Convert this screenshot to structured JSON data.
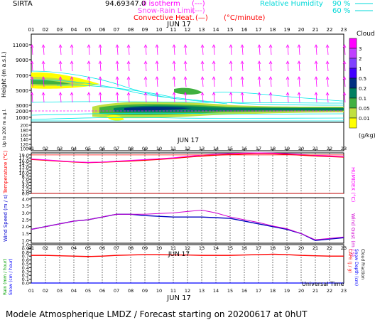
{
  "chart_data": [
    {
      "type": "heatmap",
      "panel": "clouds",
      "x_hours": [
        "01",
        "02",
        "03",
        "04",
        "05",
        "06",
        "07",
        "08",
        "09",
        "10",
        "11",
        "12",
        "13",
        "14",
        "15",
        "16",
        "17",
        "18",
        "19",
        "20",
        "21",
        "22",
        "23"
      ],
      "date_label": "JUN 17",
      "ylabel": "Height (m a.s.l.)",
      "ylabel_sub": "Up to 200 m a.g.l.",
      "y_ticks_upper": [
        "11000",
        "9000",
        "7000",
        "5000",
        "3000",
        "2000",
        "1000"
      ],
      "y_ticks_lower": [
        "200",
        "180",
        "160",
        "140",
        "120",
        "100"
      ],
      "legend": {
        "title": "Clouds",
        "unit": "(g/kg)",
        "levels": [
          "3",
          "2",
          "1",
          "0.5",
          "0.2",
          "0.1",
          "0.05",
          "0.01"
        ],
        "colors": [
          "#ff00ff",
          "#c040ff",
          "#8040ff",
          "#4000ff",
          "#003080",
          "#008060",
          "#40b040",
          "#c0e040",
          "#ffff00"
        ]
      }
    },
    {
      "type": "line",
      "panel": "temperature",
      "ylabel": "Temperature (°C)",
      "ylabel_right": "HUMIDEX (°C)",
      "y_ticks": [
        "19.0",
        "17.5",
        "16.0",
        "14.5",
        "13.0",
        "11.5",
        "10.0",
        "8.5",
        "7.0",
        "5.5",
        "4.0",
        "2.5",
        "1.0",
        "0.0"
      ],
      "ylim": [
        0,
        20
      ],
      "x": [
        1,
        2,
        3,
        4,
        5,
        6,
        7,
        8,
        9,
        10,
        11,
        12,
        13,
        14,
        15,
        16,
        17,
        18,
        19,
        20,
        21,
        22,
        23
      ],
      "series": [
        {
          "values": [
            16.8,
            16.4,
            15.9,
            15.5,
            15.2,
            15.4,
            15.7,
            16.0,
            16.4,
            16.8,
            17.3,
            17.9,
            18.4,
            18.9,
            19.2,
            19.5,
            19.7,
            19.6,
            19.3,
            18.9,
            18.5,
            18.2,
            17.9
          ]
        },
        {
          "values": [
            17.0,
            16.6,
            16.1,
            15.6,
            15.3,
            15.5,
            15.9,
            16.3,
            16.7,
            17.1,
            17.6,
            18.3,
            18.9,
            19.4,
            19.7,
            19.9,
            20.0,
            19.9,
            19.6,
            19.2,
            18.8,
            18.5,
            18.2
          ]
        }
      ]
    },
    {
      "type": "line",
      "panel": "wind",
      "ylabel": "Wind Speed (m / s)",
      "ylabel_right": "Wind Gust (m / s)",
      "y_ticks": [
        "4.0",
        "3.5",
        "3.0",
        "2.5",
        "2.0",
        "1.5",
        "1.0"
      ],
      "ylim": [
        0.8,
        4.1
      ],
      "x": [
        1,
        2,
        3,
        4,
        5,
        6,
        7,
        8,
        9,
        10,
        11,
        12,
        13,
        14,
        15,
        16,
        17,
        18,
        19,
        20,
        21,
        22,
        23
      ],
      "series": [
        {
          "name": "Wind Speed",
          "values": [
            1.8,
            2.0,
            2.2,
            2.4,
            2.5,
            2.7,
            2.9,
            2.9,
            2.8,
            2.75,
            2.7,
            2.7,
            2.7,
            2.65,
            2.6,
            2.4,
            2.2,
            2.0,
            1.8,
            1.5,
            1.0,
            1.1,
            1.2
          ]
        },
        {
          "name": "Wind Gust",
          "values": [
            1.8,
            2.0,
            2.2,
            2.4,
            2.5,
            2.7,
            2.9,
            2.9,
            2.9,
            2.95,
            3.0,
            3.1,
            3.2,
            3.0,
            2.7,
            2.5,
            2.3,
            2.05,
            1.85,
            1.5,
            1.05,
            1.15,
            1.25
          ]
        }
      ]
    },
    {
      "type": "line",
      "panel": "precip",
      "ylabel_left_1": "Rain (mm / hour)",
      "ylabel_left_2": "Snow (cm / hour)",
      "ylabel_right_1": "CAPE (J / g)",
      "ylabel_right_2": "Snow Depth (cm)",
      "ylabel_right_3": "Cloud Fraction",
      "y_ticks": [
        "1.0",
        "0.9",
        "0.8",
        "0.7",
        "0.6",
        "0.5",
        "0.4",
        "0.3",
        "0.2",
        "0.1",
        "0.0"
      ],
      "ylim": [
        0,
        1
      ],
      "x": [
        1,
        2,
        3,
        4,
        5,
        6,
        7,
        8,
        9,
        10,
        11,
        12,
        13,
        14,
        15,
        16,
        17,
        18,
        19,
        20,
        21,
        22,
        23
      ],
      "series": [
        {
          "values": [
            0.72,
            0.72,
            0.71,
            0.7,
            0.69,
            0.7,
            0.72,
            0.73,
            0.74,
            0.74,
            0.73,
            0.73,
            0.72,
            0.72,
            0.72,
            0.73,
            0.74,
            0.75,
            0.74,
            0.72,
            0.71,
            0.7,
            0.7
          ]
        }
      ],
      "date_label": "JUN 17",
      "xlabel": "Universal Time"
    }
  ],
  "header": {
    "site": "SIRTA",
    "coords": "94.69347.0",
    "isotherm_label": "0 isotherm",
    "isotherm_line": "(---)",
    "snow_rain_label": "Snow-Rain Limit",
    "snow_rain_line": "(---)",
    "convective_label": "Convective Heat.",
    "convective_line": "(—)",
    "convective_unit": "(°C/minute)",
    "rh_label": "Relative Humidity",
    "rh_90": "90 %",
    "rh_60": "60 %"
  },
  "footer": {
    "text": "Modele Atmospherique LMDZ / Forecast starting on 20200617 at 0hUT"
  }
}
